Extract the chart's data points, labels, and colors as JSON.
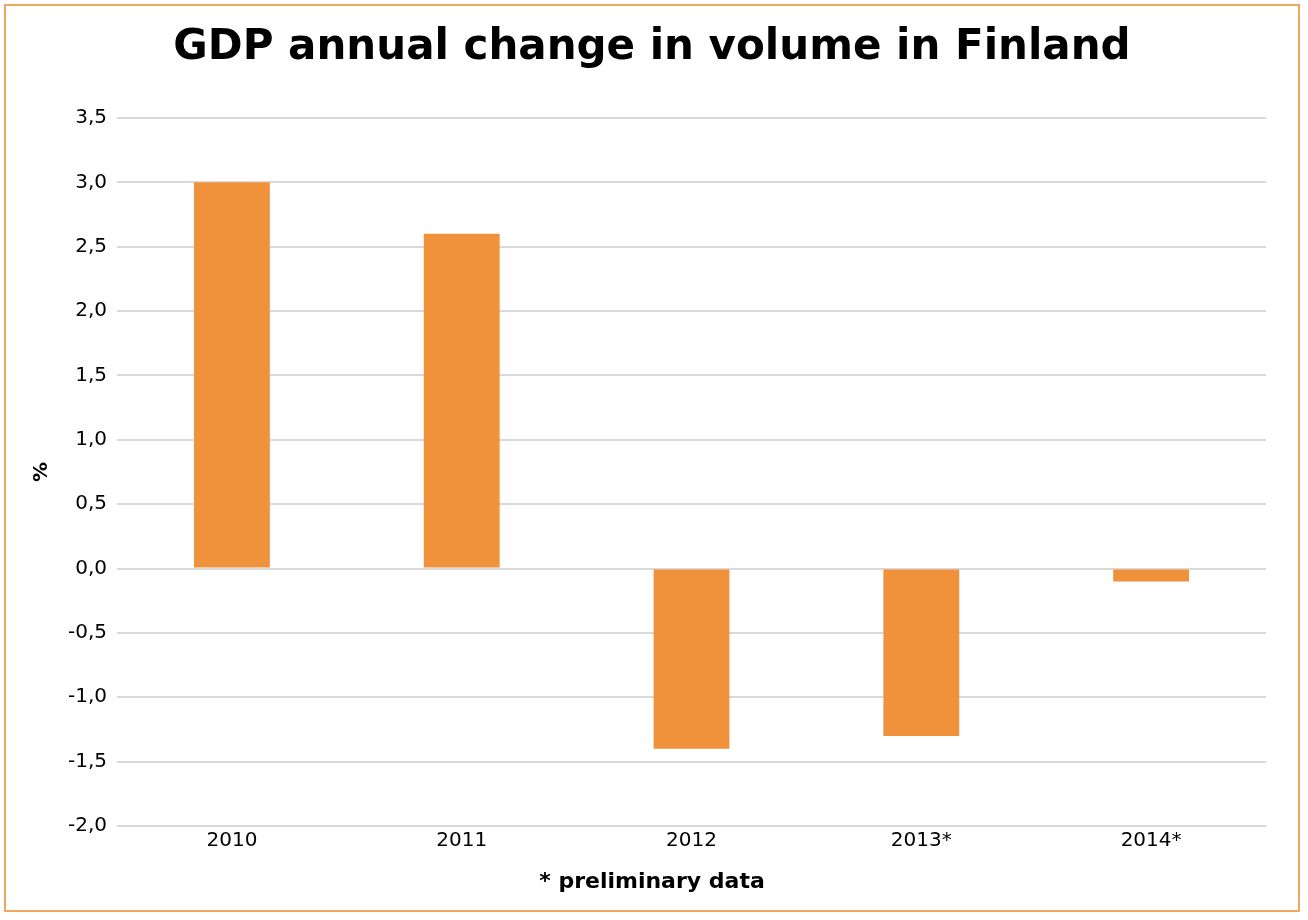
{
  "chart_data": {
    "type": "bar",
    "title": "GDP annual change in volume in Finland",
    "ylabel": "%",
    "categories": [
      "2010",
      "2011",
      "2012",
      "2013*",
      "2014*"
    ],
    "values": [
      3.0,
      2.6,
      -1.4,
      -1.3,
      -0.1
    ],
    "color": "#f0923c",
    "ylim": [
      -2,
      3.5
    ],
    "yticks": [
      {
        "value": -2,
        "label": "-2,0"
      },
      {
        "value": -1.5,
        "label": "-1,5"
      },
      {
        "value": -1,
        "label": "-1,0"
      },
      {
        "value": -0.5,
        "label": "-0,5"
      },
      {
        "value": 0,
        "label": "0,0"
      },
      {
        "value": 0.5,
        "label": "0,5"
      },
      {
        "value": 1,
        "label": "1,0"
      },
      {
        "value": 1.5,
        "label": "1,5"
      },
      {
        "value": 2,
        "label": "2,0"
      },
      {
        "value": 2.5,
        "label": "2,5"
      },
      {
        "value": 3,
        "label": "3,0"
      },
      {
        "value": 3.5,
        "label": "3,5"
      }
    ],
    "grid": "y",
    "legend": false,
    "annotations": [
      "* preliminary data"
    ]
  }
}
